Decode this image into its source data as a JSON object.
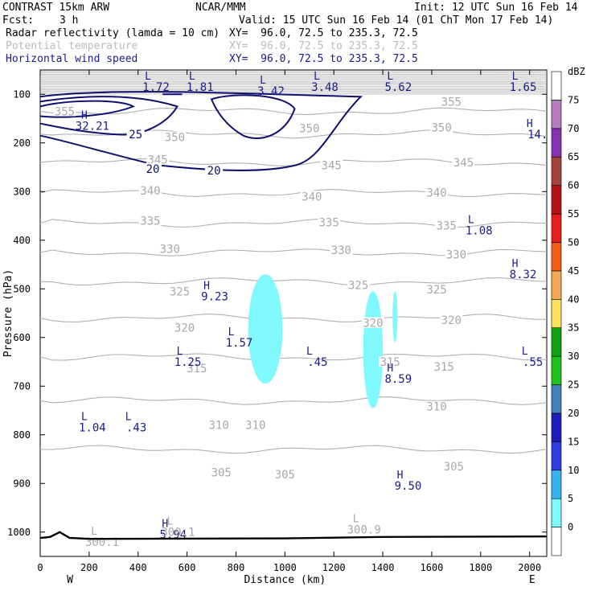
{
  "header": {
    "model": "CONTRAST 15km ARW",
    "org": "NCAR/MMM",
    "init": "Init: 12 UTC Sun 16 Feb 14",
    "fcst_label": "Fcst:",
    "fcst_value": "3 h",
    "valid": "Valid: 15 UTC Sun 16 Feb 14 (01 ChT Mon 17 Feb 14)",
    "fields": [
      {
        "name": "Radar reflectivity (lamda = 10 cm)",
        "xy": "XY=  96.0, 72.5 to 235.3, 72.5"
      },
      {
        "name": "Potential temperature",
        "xy": "XY=  96.0, 72.5 to 235.3, 72.5"
      },
      {
        "name": "Horizontal wind speed",
        "xy": "XY=  96.0, 72.5 to 235.3, 72.5"
      }
    ]
  },
  "chart_data": {
    "type": "cross-section",
    "xlabel": "Distance (km)",
    "ylabel": "Pressure (hPa)",
    "xlim": [
      0,
      2070
    ],
    "ylim": [
      1050,
      50
    ],
    "x_ticks": [
      0,
      200,
      400,
      600,
      800,
      1000,
      1200,
      1400,
      1600,
      1800,
      2000
    ],
    "y_ticks": [
      100,
      200,
      300,
      400,
      500,
      600,
      700,
      800,
      900,
      1000
    ],
    "direction_labels": {
      "left": "W",
      "right": "E"
    },
    "theta_contours_K": [
      {
        "label": "355",
        "p": 135
      },
      {
        "label": "350",
        "p": 182
      },
      {
        "label": "345",
        "p": 240
      },
      {
        "label": "340",
        "p": 303
      },
      {
        "label": "335",
        "p": 365
      },
      {
        "label": "330",
        "p": 425
      },
      {
        "label": "325",
        "p": 485
      },
      {
        "label": "320",
        "p": 560
      },
      {
        "label": "315",
        "p": 640
      },
      {
        "label": "310",
        "p": 730
      },
      {
        "label": "305",
        "p": 830
      }
    ],
    "contour_labels": [
      {
        "t": "355",
        "x": 100,
        "p": 135
      },
      {
        "t": "355",
        "x": 1680,
        "p": 115
      },
      {
        "t": "350",
        "x": 550,
        "p": 188
      },
      {
        "t": "350",
        "x": 1100,
        "p": 170
      },
      {
        "t": "350",
        "x": 1640,
        "p": 168
      },
      {
        "t": "345",
        "x": 480,
        "p": 234
      },
      {
        "t": "345",
        "x": 1190,
        "p": 246
      },
      {
        "t": "345",
        "x": 1730,
        "p": 240
      },
      {
        "t": "340",
        "x": 450,
        "p": 298
      },
      {
        "t": "340",
        "x": 1110,
        "p": 310
      },
      {
        "t": "340",
        "x": 1620,
        "p": 302
      },
      {
        "t": "335",
        "x": 450,
        "p": 360
      },
      {
        "t": "335",
        "x": 1180,
        "p": 363
      },
      {
        "t": "335",
        "x": 1660,
        "p": 370
      },
      {
        "t": "330",
        "x": 530,
        "p": 418
      },
      {
        "t": "330",
        "x": 1230,
        "p": 420
      },
      {
        "t": "330",
        "x": 1700,
        "p": 429
      },
      {
        "t": "325",
        "x": 570,
        "p": 505
      },
      {
        "t": "325",
        "x": 1300,
        "p": 492
      },
      {
        "t": "325",
        "x": 1620,
        "p": 501
      },
      {
        "t": "320",
        "x": 590,
        "p": 580
      },
      {
        "t": "320",
        "x": 1360,
        "p": 570
      },
      {
        "t": "320",
        "x": 1680,
        "p": 564
      },
      {
        "t": "315",
        "x": 640,
        "p": 663
      },
      {
        "t": "315",
        "x": 1430,
        "p": 650
      },
      {
        "t": "315",
        "x": 1650,
        "p": 660
      },
      {
        "t": "310",
        "x": 730,
        "p": 780
      },
      {
        "t": "310",
        "x": 880,
        "p": 780
      },
      {
        "t": "310",
        "x": 1620,
        "p": 742
      },
      {
        "t": "305",
        "x": 740,
        "p": 877
      },
      {
        "t": "305",
        "x": 1000,
        "p": 881
      },
      {
        "t": "305",
        "x": 1690,
        "p": 865
      }
    ],
    "wind_speed_contours_ms": [
      {
        "t": "25",
        "x": 390,
        "p": 182
      },
      {
        "t": "20",
        "x": 460,
        "p": 253
      },
      {
        "t": "20",
        "x": 710,
        "p": 257
      }
    ],
    "reflectivity_cells_dBZ": [
      {
        "x0": 850,
        "x1": 990,
        "p0": 470,
        "p1": 695,
        "value": 5
      },
      {
        "x0": 1320,
        "x1": 1400,
        "p0": 505,
        "p1": 745,
        "value": 5
      },
      {
        "x0": 1440,
        "x1": 1460,
        "p0": 505,
        "p1": 610,
        "value": 5
      }
    ],
    "extrema": [
      {
        "type": "L",
        "value": "1.72",
        "x": 460,
        "p": 75,
        "style": "navy"
      },
      {
        "type": "L",
        "value": "1.81",
        "x": 640,
        "p": 75,
        "style": "navy"
      },
      {
        "type": "L",
        "value": "3.42",
        "x": 930,
        "p": 83,
        "style": "navy"
      },
      {
        "type": "L",
        "value": "3.48",
        "x": 1150,
        "p": 75,
        "style": "navy"
      },
      {
        "type": "L",
        "value": "5.62",
        "x": 1450,
        "p": 75,
        "style": "navy"
      },
      {
        "type": "L",
        "value": "1.65",
        "x": 1960,
        "p": 75,
        "style": "navy"
      },
      {
        "type": "H",
        "value": "32.21",
        "x": 200,
        "p": 155,
        "style": "navy"
      },
      {
        "type": "H",
        "value": "14.",
        "x": 2020,
        "p": 172,
        "style": "navy"
      },
      {
        "type": "L",
        "value": "1.08",
        "x": 1780,
        "p": 370,
        "style": "navy"
      },
      {
        "type": "H",
        "value": "8.32",
        "x": 1960,
        "p": 460,
        "style": "navy"
      },
      {
        "type": "H",
        "value": "9.23",
        "x": 700,
        "p": 505,
        "style": "navy"
      },
      {
        "type": "L",
        "value": "1.57",
        "x": 800,
        "p": 600,
        "style": "navy"
      },
      {
        "type": "L",
        "value": "1.25",
        "x": 590,
        "p": 640,
        "style": "navy"
      },
      {
        "type": "L",
        "value": ".45",
        "x": 1120,
        "p": 640,
        "style": "navy"
      },
      {
        "type": "L",
        "value": ".55",
        "x": 2000,
        "p": 640,
        "style": "navy"
      },
      {
        "type": "H",
        "value": "8.59",
        "x": 1450,
        "p": 675,
        "style": "navy"
      },
      {
        "type": "L",
        "value": "1.04",
        "x": 200,
        "p": 775,
        "style": "navy"
      },
      {
        "type": "L",
        "value": ".43",
        "x": 380,
        "p": 775,
        "style": "navy"
      },
      {
        "type": "H",
        "value": "9.50",
        "x": 1490,
        "p": 895,
        "style": "navy"
      },
      {
        "type": "H",
        "value": "5.94",
        "x": 530,
        "p": 995,
        "style": "navy"
      },
      {
        "type": "L",
        "value": "300.1",
        "x": 240,
        "p": 1010,
        "style": "gray"
      },
      {
        "type": "L",
        "value": "300.1",
        "x": 550,
        "p": 990,
        "style": "gray"
      },
      {
        "type": "L",
        "value": "300.9",
        "x": 1310,
        "p": 985,
        "style": "gray"
      }
    ],
    "colorbar": {
      "unit": "dBZ",
      "levels": [
        0,
        5,
        10,
        15,
        20,
        25,
        30,
        35,
        40,
        45,
        50,
        55,
        60,
        65,
        70,
        75
      ],
      "colors": [
        "#ffffff",
        "#7ff8ff",
        "#38b2ee",
        "#2f3cdf",
        "#1f1cbb",
        "#3e7fbc",
        "#1ec21e",
        "#10a010",
        "#f8e25a",
        "#f5a652",
        "#f45c1c",
        "#e51d1d",
        "#b51313",
        "#a4433f",
        "#8431b4",
        "#b67cc1",
        "#ffffff"
      ]
    }
  }
}
